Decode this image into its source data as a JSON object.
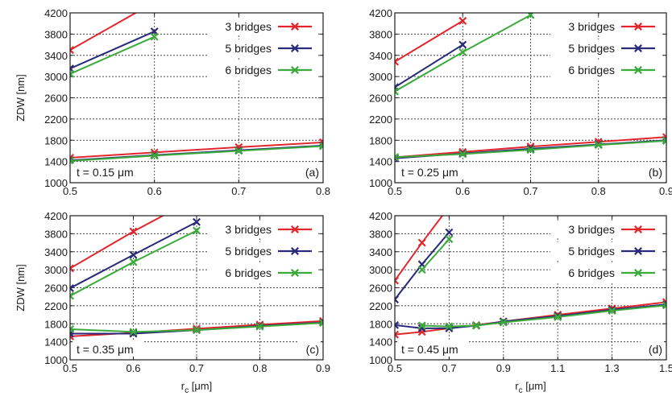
{
  "chart_data": [
    {
      "type": "line",
      "panel_label": "(a)",
      "annotation": "t = 0.15 μm",
      "xlim": [
        0.5,
        0.8
      ],
      "ylim": [
        1000,
        4200
      ],
      "xticks": [
        "0.5",
        "0.6",
        "0.7",
        "0.8"
      ],
      "yticks": [
        "1000",
        "1400",
        "1800",
        "2200",
        "2600",
        "3000",
        "3400",
        "3800",
        "4200"
      ],
      "ylabel": "ZDW [nm]",
      "xlabel": "",
      "grid": true,
      "legend": "top-right",
      "series": [
        {
          "name": "3 bridges",
          "color": "#e3262b",
          "branch": "upper",
          "x": [
            0.5,
            0.6
          ],
          "y": [
            3500,
            4400
          ]
        },
        {
          "name": "5 bridges",
          "color": "#2a2a7a",
          "branch": "upper",
          "x": [
            0.5,
            0.6
          ],
          "y": [
            3150,
            3850
          ]
        },
        {
          "name": "6 bridges",
          "color": "#3aaa3a",
          "branch": "upper",
          "x": [
            0.5,
            0.6
          ],
          "y": [
            3050,
            3750
          ]
        },
        {
          "name": "3 bridges",
          "color": "#e3262b",
          "branch": "lower",
          "x": [
            0.5,
            0.6,
            0.7,
            0.8
          ],
          "y": [
            1470,
            1570,
            1670,
            1760
          ]
        },
        {
          "name": "5 bridges",
          "color": "#2a2a7a",
          "branch": "lower",
          "x": [
            0.5,
            0.6,
            0.7,
            0.8
          ],
          "y": [
            1420,
            1520,
            1610,
            1700
          ]
        },
        {
          "name": "6 bridges",
          "color": "#3aaa3a",
          "branch": "lower",
          "x": [
            0.5,
            0.6,
            0.7,
            0.8
          ],
          "y": [
            1410,
            1510,
            1600,
            1690
          ]
        }
      ]
    },
    {
      "type": "line",
      "panel_label": "(b)",
      "annotation": "t = 0.25 μm",
      "xlim": [
        0.5,
        0.9
      ],
      "ylim": [
        1000,
        4200
      ],
      "xticks": [
        "0.5",
        "0.6",
        "0.7",
        "0.8",
        "0.9"
      ],
      "yticks": [
        "1000",
        "1400",
        "1800",
        "2200",
        "2600",
        "3000",
        "3400",
        "3800",
        "4200"
      ],
      "ylabel": "",
      "xlabel": "",
      "grid": true,
      "legend": "top-right",
      "series": [
        {
          "name": "3 bridges",
          "color": "#e3262b",
          "branch": "upper",
          "x": [
            0.5,
            0.6
          ],
          "y": [
            3280,
            4050
          ]
        },
        {
          "name": "5 bridges",
          "color": "#2a2a7a",
          "branch": "upper",
          "x": [
            0.5,
            0.6
          ],
          "y": [
            2800,
            3600
          ]
        },
        {
          "name": "6 bridges",
          "color": "#3aaa3a",
          "branch": "upper",
          "x": [
            0.5,
            0.6,
            0.7
          ],
          "y": [
            2720,
            3460,
            4160
          ]
        },
        {
          "name": "3 bridges",
          "color": "#e3262b",
          "branch": "lower",
          "x": [
            0.5,
            0.6,
            0.7,
            0.8,
            0.9
          ],
          "y": [
            1480,
            1580,
            1680,
            1770,
            1860
          ]
        },
        {
          "name": "5 bridges",
          "color": "#2a2a7a",
          "branch": "lower",
          "x": [
            0.5,
            0.6,
            0.7,
            0.8,
            0.9
          ],
          "y": [
            1460,
            1550,
            1640,
            1720,
            1800
          ]
        },
        {
          "name": "6 bridges",
          "color": "#3aaa3a",
          "branch": "lower",
          "x": [
            0.5,
            0.6,
            0.7,
            0.8,
            0.9
          ],
          "y": [
            1480,
            1540,
            1620,
            1710,
            1790
          ]
        }
      ]
    },
    {
      "type": "line",
      "panel_label": "(c)",
      "annotation": "t = 0.35 μm",
      "xlim": [
        0.5,
        0.9
      ],
      "ylim": [
        1000,
        4200
      ],
      "xticks": [
        "0.5",
        "0.6",
        "0.7",
        "0.8",
        "0.9"
      ],
      "yticks": [
        "1000",
        "1400",
        "1800",
        "2200",
        "2600",
        "3000",
        "3400",
        "3800",
        "4200"
      ],
      "ylabel": "ZDW [nm]",
      "xlabel": "rc [μm]",
      "grid": true,
      "legend": "top-right",
      "series": [
        {
          "name": "3 bridges",
          "color": "#e3262b",
          "branch": "upper",
          "x": [
            0.5,
            0.6,
            0.7
          ],
          "y": [
            3030,
            3850,
            4600
          ]
        },
        {
          "name": "5 bridges",
          "color": "#2a2a7a",
          "branch": "upper",
          "x": [
            0.5,
            0.6,
            0.7
          ],
          "y": [
            2590,
            3330,
            4060
          ]
        },
        {
          "name": "6 bridges",
          "color": "#3aaa3a",
          "branch": "upper",
          "x": [
            0.5,
            0.6,
            0.7
          ],
          "y": [
            2420,
            3170,
            3870
          ]
        },
        {
          "name": "3 bridges",
          "color": "#e3262b",
          "branch": "lower",
          "x": [
            0.5,
            0.6,
            0.7,
            0.8,
            0.9
          ],
          "y": [
            1520,
            1600,
            1690,
            1780,
            1860
          ]
        },
        {
          "name": "5 bridges",
          "color": "#2a2a7a",
          "branch": "lower",
          "x": [
            0.5,
            0.6,
            0.7,
            0.8,
            0.9
          ],
          "y": [
            1580,
            1580,
            1660,
            1750,
            1830
          ]
        },
        {
          "name": "6 bridges",
          "color": "#3aaa3a",
          "branch": "lower",
          "x": [
            0.5,
            0.6,
            0.7,
            0.8,
            0.9
          ],
          "y": [
            1680,
            1620,
            1660,
            1740,
            1820
          ]
        }
      ]
    },
    {
      "type": "line",
      "panel_label": "(d)",
      "annotation": "t = 0.45 μm",
      "xlim": [
        0.5,
        1.5
      ],
      "ylim": [
        1000,
        4200
      ],
      "xticks": [
        "0.5",
        "0.7",
        "0.9",
        "1.1",
        "1.3",
        "1.5"
      ],
      "yticks": [
        "1000",
        "1400",
        "1800",
        "2200",
        "2600",
        "3000",
        "3400",
        "3800",
        "4200"
      ],
      "ylabel": "",
      "xlabel": "rc [μm]",
      "grid": true,
      "legend": "top-right",
      "series": [
        {
          "name": "3 bridges",
          "color": "#e3262b",
          "branch": "upper",
          "x": [
            0.5,
            0.6,
            0.7
          ],
          "y": [
            2760,
            3600,
            4400
          ]
        },
        {
          "name": "5 bridges",
          "color": "#2a2a7a",
          "branch": "upper",
          "x": [
            0.5,
            0.6,
            0.7
          ],
          "y": [
            2340,
            3120,
            3830
          ]
        },
        {
          "name": "6 bridges",
          "color": "#3aaa3a",
          "branch": "upper",
          "x": [
            0.6,
            0.7
          ],
          "y": [
            3000,
            3680
          ]
        },
        {
          "name": "3 bridges",
          "color": "#e3262b",
          "branch": "lower",
          "x": [
            0.5,
            0.6,
            0.7,
            0.8,
            0.9,
            1.1,
            1.3,
            1.5
          ],
          "y": [
            1560,
            1620,
            1700,
            1770,
            1850,
            2000,
            2140,
            2280
          ]
        },
        {
          "name": "5 bridges",
          "color": "#2a2a7a",
          "branch": "lower",
          "x": [
            0.5,
            0.6,
            0.7,
            0.8,
            0.9,
            1.1,
            1.3,
            1.5
          ],
          "y": [
            1770,
            1700,
            1700,
            1760,
            1850,
            1970,
            2110,
            2230
          ]
        },
        {
          "name": "6 bridges",
          "color": "#3aaa3a",
          "branch": "lower",
          "x": [
            0.6,
            0.7,
            0.8,
            0.9,
            1.1,
            1.3,
            1.5
          ],
          "y": [
            1760,
            1740,
            1760,
            1830,
            1950,
            2090,
            2210
          ]
        }
      ]
    }
  ]
}
